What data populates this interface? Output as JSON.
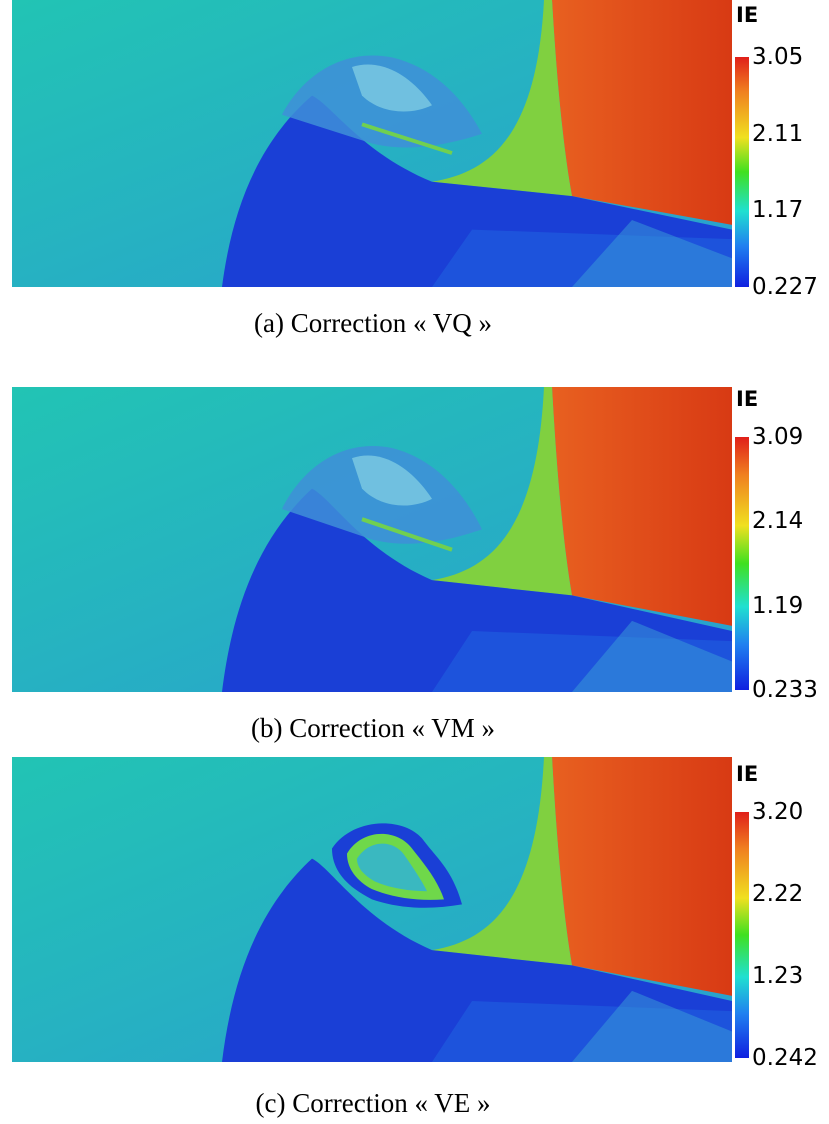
{
  "panels": [
    {
      "colorbar": {
        "title": "IE",
        "ticks": [
          "3.05",
          "2.11",
          "1.17",
          "0.227"
        ]
      },
      "caption": "(a) Correction « VQ »"
    },
    {
      "colorbar": {
        "title": "IE",
        "ticks": [
          "3.09",
          "2.14",
          "1.19",
          "0.233"
        ]
      },
      "caption": "(b) Correction « VM »"
    },
    {
      "colorbar": {
        "title": "IE",
        "ticks": [
          "3.20",
          "2.22",
          "1.23",
          "0.242"
        ]
      },
      "caption": "(c) Correction « VE »"
    }
  ]
}
